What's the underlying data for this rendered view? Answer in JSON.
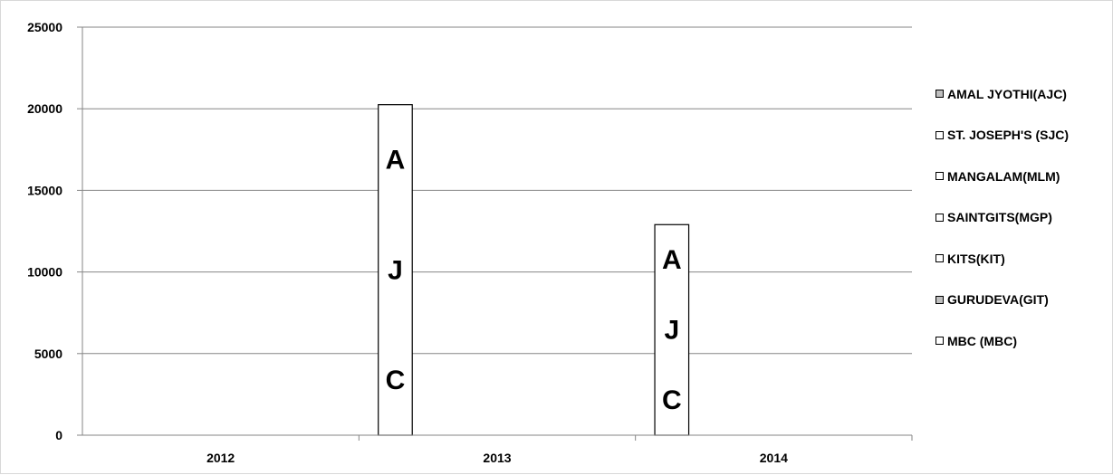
{
  "chart_data": {
    "type": "bar",
    "categories": [
      "2012",
      "2013",
      "2014"
    ],
    "series": [
      {
        "name": "AMAL JYOTHI(AJC)",
        "values": [
          0,
          20250,
          12900
        ],
        "bar_text": "AJC"
      },
      {
        "name": "ST. JOSEPH'S (SJC)",
        "values": [
          0,
          0,
          0
        ]
      },
      {
        "name": "MANGALAM(MLM)",
        "values": [
          0,
          0,
          0
        ]
      },
      {
        "name": "SAINTGITS(MGP)",
        "values": [
          0,
          0,
          0
        ]
      },
      {
        "name": "KITS(KIT)",
        "values": [
          0,
          0,
          0
        ]
      },
      {
        "name": "GURUDEVA(GIT)",
        "values": [
          0,
          0,
          0
        ]
      },
      {
        "name": "MBC (MBC)",
        "values": [
          0,
          0,
          0
        ]
      }
    ],
    "yticks": [
      "0",
      "5000",
      "10000",
      "15000",
      "20000",
      "25000"
    ],
    "ylim": [
      0,
      25000
    ],
    "grid": true,
    "legend_position": "right",
    "colors": {
      "bar_fill": "#ffffff",
      "bar_stroke": "#000000",
      "gridline": "#868686",
      "axis": "#868686",
      "legend_swatch_dotted": "#bfbfbf"
    }
  }
}
